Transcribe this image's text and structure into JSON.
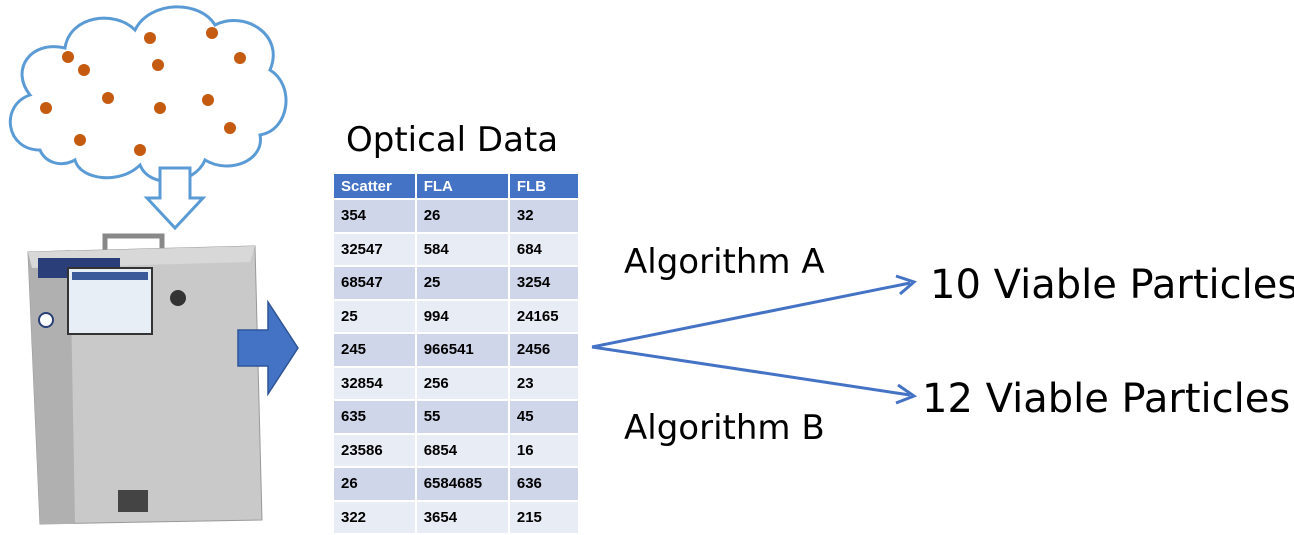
{
  "diagram": {
    "title": "Optical Data",
    "table": {
      "headers": [
        "Scatter",
        "FLA",
        "FLB"
      ],
      "rows": [
        [
          354,
          26,
          32
        ],
        [
          32547,
          584,
          684
        ],
        [
          68547,
          25,
          3254
        ],
        [
          25,
          994,
          24165
        ],
        [
          245,
          966541,
          2456
        ],
        [
          32854,
          256,
          23
        ],
        [
          635,
          55,
          45
        ],
        [
          23586,
          6854,
          16
        ],
        [
          26,
          6584685,
          636
        ],
        [
          322,
          3654,
          215
        ]
      ]
    },
    "algorithms": [
      "Algorithm A",
      "Algorithm B"
    ],
    "results": [
      "10 Viable Particles",
      "12 Viable Particles"
    ]
  }
}
